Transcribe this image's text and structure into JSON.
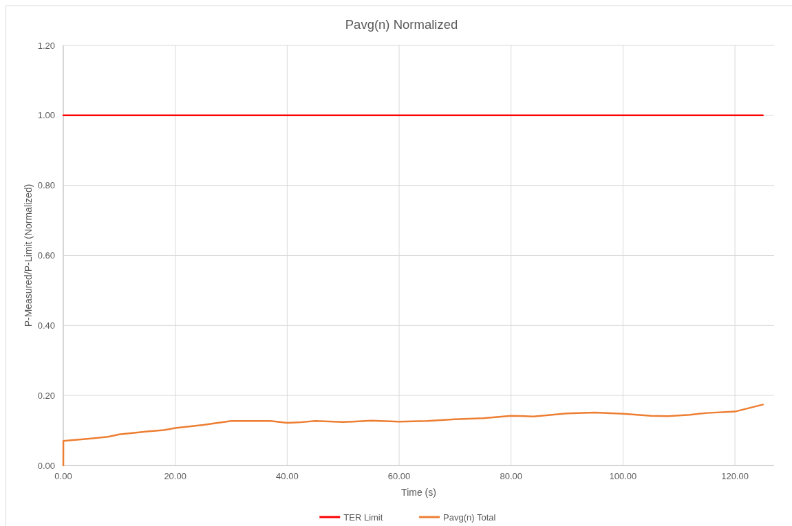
{
  "chart_data": {
    "type": "line",
    "title": "Pavg(n) Normalized",
    "xlabel": "Time (s)",
    "ylabel": "P-Measured/P-Limit (Normalized)",
    "xlim": [
      0,
      127
    ],
    "xticks": [
      {
        "value": 0,
        "label": "0.00"
      },
      {
        "value": 20,
        "label": "20.00"
      },
      {
        "value": 40,
        "label": "40.00"
      },
      {
        "value": 60,
        "label": "60.00"
      },
      {
        "value": 80,
        "label": "80.00"
      },
      {
        "value": 100,
        "label": "100.00"
      },
      {
        "value": 120,
        "label": "120.00"
      }
    ],
    "ylim": [
      0,
      1.2
    ],
    "yticks": [
      {
        "value": 0,
        "label": "0.00"
      },
      {
        "value": 0.2,
        "label": "0.20"
      },
      {
        "value": 0.4,
        "label": "0.40"
      },
      {
        "value": 0.6,
        "label": "0.60"
      },
      {
        "value": 0.8,
        "label": "0.80"
      },
      {
        "value": 1,
        "label": "1.00"
      },
      {
        "value": 1.2,
        "label": "1.20"
      }
    ],
    "grid": true,
    "legend": "bottom",
    "marker": "none",
    "line_style": "solid",
    "series": [
      {
        "name": "TER Limit",
        "color": "#ff0000",
        "x": [
          0,
          125
        ],
        "values": [
          1,
          1
        ]
      },
      {
        "name": "Pavg(n) Total",
        "color": "#ed7d31",
        "x": [
          0,
          0.01,
          5,
          8,
          10,
          15,
          18,
          20,
          25,
          30,
          37,
          40,
          42,
          45,
          50,
          55,
          60,
          65,
          70,
          75,
          80,
          84,
          90,
          95,
          100,
          105,
          108,
          112,
          115,
          120,
          125
        ],
        "values": [
          0,
          0.07,
          0.077,
          0.082,
          0.089,
          0.097,
          0.101,
          0.107,
          0.116,
          0.127,
          0.127,
          0.122,
          0.123,
          0.127,
          0.124,
          0.128,
          0.125,
          0.127,
          0.132,
          0.135,
          0.142,
          0.14,
          0.149,
          0.151,
          0.148,
          0.142,
          0.141,
          0.145,
          0.15,
          0.154,
          0.174
        ]
      }
    ]
  }
}
